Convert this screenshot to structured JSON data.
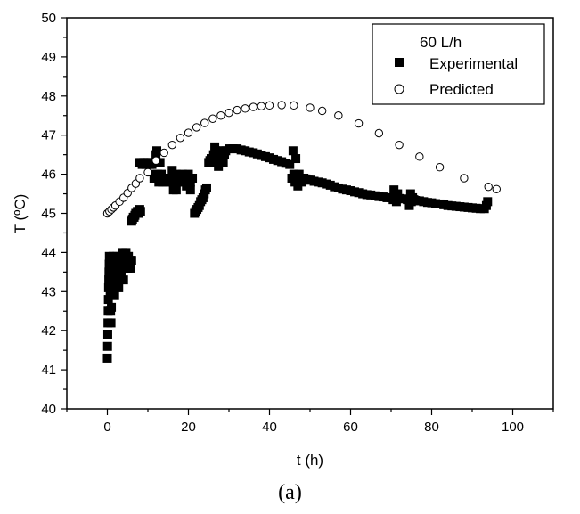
{
  "chart_data": {
    "type": "scatter",
    "xlabel": "t (h)",
    "ylabel": "T (ºC)",
    "xlim": [
      -10,
      110
    ],
    "ylim": [
      40,
      50
    ],
    "xticks": [
      0,
      20,
      40,
      60,
      80,
      100
    ],
    "yticks": [
      40,
      41,
      42,
      43,
      44,
      45,
      46,
      47,
      48,
      49,
      50
    ],
    "grid": false,
    "legend": {
      "placement": "top-right",
      "title": "60 L/h",
      "entries": [
        "Experimental",
        "Predicted"
      ]
    },
    "series": [
      {
        "name": "Experimental",
        "marker": "filled-square",
        "color": "#000000",
        "points": [
          [
            0.0,
            41.3
          ],
          [
            0.05,
            41.6
          ],
          [
            0.1,
            41.9
          ],
          [
            0.15,
            42.2
          ],
          [
            0.2,
            42.5
          ],
          [
            0.25,
            42.8
          ],
          [
            0.3,
            43.1
          ],
          [
            0.35,
            43.3
          ],
          [
            0.4,
            43.5
          ],
          [
            0.45,
            43.7
          ],
          [
            0.5,
            43.9
          ],
          [
            0.7,
            43.0
          ],
          [
            0.8,
            42.5
          ],
          [
            0.9,
            42.2
          ],
          [
            1.0,
            42.6
          ],
          [
            1.1,
            43.0
          ],
          [
            1.2,
            43.4
          ],
          [
            1.3,
            43.7
          ],
          [
            1.4,
            43.9
          ],
          [
            1.6,
            43.2
          ],
          [
            1.8,
            42.9
          ],
          [
            2.0,
            43.3
          ],
          [
            2.2,
            43.6
          ],
          [
            2.4,
            43.9
          ],
          [
            2.6,
            43.4
          ],
          [
            2.8,
            43.1
          ],
          [
            3.0,
            43.5
          ],
          [
            3.2,
            43.8
          ],
          [
            3.4,
            43.5
          ],
          [
            3.6,
            43.9
          ],
          [
            3.8,
            44.0
          ],
          [
            4.0,
            43.3
          ],
          [
            4.2,
            43.6
          ],
          [
            4.4,
            43.8
          ],
          [
            4.6,
            44.0
          ],
          [
            4.8,
            43.7
          ],
          [
            5.0,
            43.6
          ],
          [
            5.2,
            43.9
          ],
          [
            5.4,
            43.7
          ],
          [
            5.6,
            43.8
          ],
          [
            5.8,
            43.6
          ],
          [
            6.0,
            43.8
          ],
          [
            6.0,
            44.8
          ],
          [
            6.2,
            44.85
          ],
          [
            6.4,
            44.9
          ],
          [
            6.6,
            44.9
          ],
          [
            6.8,
            44.95
          ],
          [
            7.0,
            45.0
          ],
          [
            7.2,
            45.0
          ],
          [
            7.4,
            45.05
          ],
          [
            7.6,
            45.0
          ],
          [
            7.8,
            45.05
          ],
          [
            8.0,
            45.1
          ],
          [
            8.2,
            45.05
          ],
          [
            8.0,
            46.3
          ],
          [
            8.3,
            46.3
          ],
          [
            8.6,
            46.25
          ],
          [
            8.9,
            46.3
          ],
          [
            9.2,
            46.3
          ],
          [
            9.5,
            46.25
          ],
          [
            9.8,
            46.3
          ],
          [
            10.1,
            46.3
          ],
          [
            10.4,
            46.25
          ],
          [
            10.7,
            46.3
          ],
          [
            11.0,
            46.25
          ],
          [
            11.5,
            45.9
          ],
          [
            11.8,
            46.0
          ],
          [
            12.0,
            46.5
          ],
          [
            12.2,
            46.6
          ],
          [
            12.4,
            46.0
          ],
          [
            12.7,
            45.8
          ],
          [
            13.0,
            46.3
          ],
          [
            13.3,
            46.0
          ],
          [
            13.6,
            45.8
          ],
          [
            14.0,
            45.9
          ],
          [
            14.5,
            45.8
          ],
          [
            15.0,
            45.85
          ],
          [
            15.5,
            45.9
          ],
          [
            16.0,
            45.8
          ],
          [
            16.5,
            45.9
          ],
          [
            17.0,
            46.0
          ],
          [
            17.5,
            45.9
          ],
          [
            18.0,
            45.8
          ],
          [
            18.5,
            45.9
          ],
          [
            19.0,
            45.8
          ],
          [
            19.5,
            45.9
          ],
          [
            20.0,
            46.0
          ],
          [
            20.5,
            45.8
          ],
          [
            21.0,
            45.9
          ],
          [
            16.0,
            46.1
          ],
          [
            16.3,
            45.6
          ],
          [
            17.0,
            45.6
          ],
          [
            18.5,
            46.0
          ],
          [
            19.5,
            45.7
          ],
          [
            20.5,
            45.6
          ],
          [
            21.5,
            45.0
          ],
          [
            21.8,
            45.05
          ],
          [
            22.1,
            45.1
          ],
          [
            22.4,
            45.15
          ],
          [
            22.7,
            45.2
          ],
          [
            23.0,
            45.3
          ],
          [
            23.3,
            45.35
          ],
          [
            23.6,
            45.4
          ],
          [
            23.9,
            45.5
          ],
          [
            24.2,
            45.6
          ],
          [
            24.5,
            45.65
          ],
          [
            25.0,
            46.3
          ],
          [
            25.3,
            46.35
          ],
          [
            25.6,
            46.4
          ],
          [
            25.9,
            46.3
          ],
          [
            26.2,
            46.5
          ],
          [
            26.5,
            46.7
          ],
          [
            26.8,
            46.6
          ],
          [
            27.1,
            46.3
          ],
          [
            27.4,
            46.2
          ],
          [
            27.7,
            46.4
          ],
          [
            28.0,
            46.6
          ],
          [
            28.3,
            46.5
          ],
          [
            28.6,
            46.3
          ],
          [
            28.9,
            46.5
          ],
          [
            29.2,
            46.6
          ],
          [
            30,
            46.65
          ],
          [
            31,
            46.65
          ],
          [
            32,
            46.65
          ],
          [
            33,
            46.62
          ],
          [
            34,
            46.6
          ],
          [
            35,
            46.57
          ],
          [
            36,
            46.55
          ],
          [
            37,
            46.52
          ],
          [
            38,
            46.48
          ],
          [
            39,
            46.45
          ],
          [
            40,
            46.42
          ],
          [
            41,
            46.38
          ],
          [
            42,
            46.35
          ],
          [
            43,
            46.32
          ],
          [
            44,
            46.28
          ],
          [
            45,
            46.25
          ],
          [
            45.5,
            45.9
          ],
          [
            45.8,
            46.6
          ],
          [
            46.0,
            46.0
          ],
          [
            46.3,
            45.8
          ],
          [
            46.5,
            46.4
          ],
          [
            46.8,
            45.9
          ],
          [
            47.0,
            45.7
          ],
          [
            47.3,
            46.0
          ],
          [
            47.6,
            45.9
          ],
          [
            48.0,
            45.8
          ],
          [
            48.5,
            45.9
          ],
          [
            49,
            45.88
          ],
          [
            49.5,
            45.85
          ],
          [
            50,
            45.85
          ],
          [
            51,
            45.82
          ],
          [
            52,
            45.8
          ],
          [
            53,
            45.78
          ],
          [
            54,
            45.75
          ],
          [
            55,
            45.72
          ],
          [
            56,
            45.68
          ],
          [
            57,
            45.65
          ],
          [
            58,
            45.62
          ],
          [
            59,
            45.6
          ],
          [
            60,
            45.58
          ],
          [
            61,
            45.55
          ],
          [
            62,
            45.53
          ],
          [
            63,
            45.5
          ],
          [
            64,
            45.48
          ],
          [
            65,
            45.47
          ],
          [
            66,
            45.45
          ],
          [
            67,
            45.43
          ],
          [
            68,
            45.42
          ],
          [
            69,
            45.4
          ],
          [
            70,
            45.4
          ],
          [
            70.5,
            45.35
          ],
          [
            70.7,
            45.6
          ],
          [
            71.0,
            45.4
          ],
          [
            71.3,
            45.3
          ],
          [
            71.6,
            45.5
          ],
          [
            72,
            45.38
          ],
          [
            73,
            45.37
          ],
          [
            74,
            45.35
          ],
          [
            74.5,
            45.2
          ],
          [
            74.8,
            45.5
          ],
          [
            75.0,
            45.3
          ],
          [
            75.3,
            45.4
          ],
          [
            75.6,
            45.35
          ],
          [
            76,
            45.33
          ],
          [
            77,
            45.32
          ],
          [
            78,
            45.3
          ],
          [
            79,
            45.28
          ],
          [
            80,
            45.27
          ],
          [
            81,
            45.25
          ],
          [
            82,
            45.24
          ],
          [
            83,
            45.22
          ],
          [
            84,
            45.2
          ],
          [
            85,
            45.19
          ],
          [
            86,
            45.18
          ],
          [
            87,
            45.17
          ],
          [
            88,
            45.16
          ],
          [
            89,
            45.15
          ],
          [
            90,
            45.14
          ],
          [
            91,
            45.13
          ],
          [
            92,
            45.12
          ],
          [
            93,
            45.12
          ],
          [
            93.5,
            45.2
          ],
          [
            93.8,
            45.3
          ]
        ]
      },
      {
        "name": "Predicted",
        "marker": "open-circle",
        "color": "#000000",
        "points": [
          [
            0,
            45.0
          ],
          [
            0.5,
            45.05
          ],
          [
            1,
            45.1
          ],
          [
            1.5,
            45.15
          ],
          [
            2,
            45.2
          ],
          [
            3,
            45.3
          ],
          [
            4,
            45.4
          ],
          [
            5,
            45.52
          ],
          [
            6,
            45.65
          ],
          [
            7,
            45.76
          ],
          [
            8,
            45.9
          ],
          [
            10,
            46.05
          ],
          [
            12,
            46.35
          ],
          [
            14,
            46.55
          ],
          [
            16,
            46.75
          ],
          [
            18,
            46.93
          ],
          [
            20,
            47.06
          ],
          [
            22,
            47.2
          ],
          [
            24,
            47.31
          ],
          [
            26,
            47.42
          ],
          [
            28,
            47.5
          ],
          [
            30,
            47.57
          ],
          [
            32,
            47.64
          ],
          [
            34,
            47.68
          ],
          [
            36,
            47.72
          ],
          [
            38,
            47.74
          ],
          [
            40,
            47.76
          ],
          [
            43,
            47.77
          ],
          [
            46,
            47.76
          ],
          [
            50,
            47.7
          ],
          [
            53,
            47.62
          ],
          [
            57,
            47.5
          ],
          [
            62,
            47.3
          ],
          [
            67,
            47.05
          ],
          [
            72,
            46.75
          ],
          [
            77,
            46.45
          ],
          [
            82,
            46.18
          ],
          [
            88,
            45.9
          ],
          [
            94,
            45.68
          ],
          [
            96,
            45.62
          ]
        ]
      }
    ]
  },
  "figure": {
    "caption": "(a)"
  }
}
